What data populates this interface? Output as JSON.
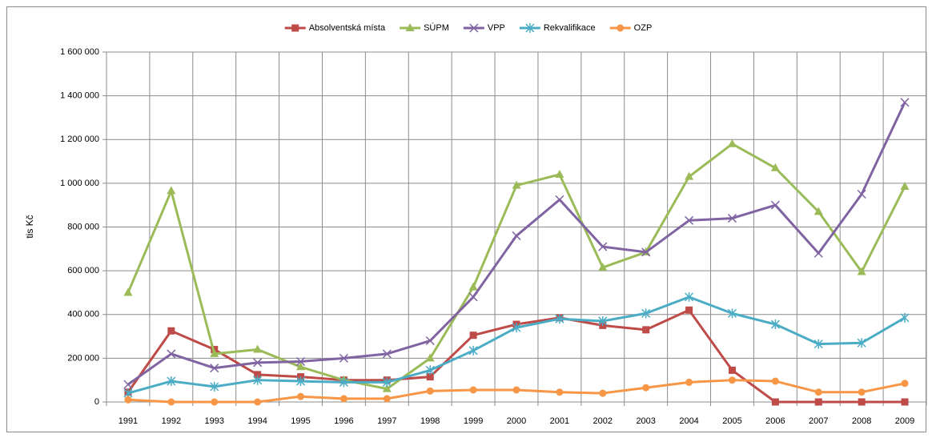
{
  "chart_data": {
    "type": "line",
    "y_label": "tis Kč",
    "categories": [
      "1991",
      "1992",
      "1993",
      "1994",
      "1995",
      "1996",
      "1997",
      "1998",
      "1999",
      "2000",
      "2001",
      "2002",
      "2003",
      "2004",
      "2005",
      "2006",
      "2007",
      "2008",
      "2009"
    ],
    "ylim": [
      0,
      1600000
    ],
    "yticks": [
      0,
      {
        "value": 200000,
        "label": "200 000"
      },
      {
        "value": 400000,
        "label": "400 000"
      },
      {
        "value": 600000,
        "label": "600 000"
      },
      {
        "value": 800000,
        "label": "800 000"
      },
      {
        "value": 1000000,
        "label": "1 000 000"
      },
      {
        "value": 1200000,
        "label": "1 200 000"
      },
      {
        "value": 1400000,
        "label": "1 400 000"
      },
      {
        "value": 1600000,
        "label": "1 600 000"
      }
    ],
    "grid": true,
    "legend": "top",
    "series": [
      {
        "name": "Absolventská místa",
        "color": "#be4b48",
        "marker": "square",
        "values": [
          45000,
          325000,
          240000,
          125000,
          115000,
          100000,
          100000,
          115000,
          305000,
          355000,
          385000,
          350000,
          330000,
          420000,
          145000,
          0,
          0,
          0,
          0
        ]
      },
      {
        "name": "SÚPM",
        "color": "#9bbb59",
        "marker": "triangle",
        "values": [
          500000,
          965000,
          220000,
          240000,
          160000,
          100000,
          60000,
          200000,
          525000,
          990000,
          1040000,
          615000,
          685000,
          1030000,
          1180000,
          1070000,
          870000,
          595000,
          985000
        ]
      },
      {
        "name": "VPP",
        "color": "#8064a2",
        "marker": "x",
        "values": [
          80000,
          220000,
          155000,
          180000,
          185000,
          200000,
          220000,
          280000,
          480000,
          760000,
          925000,
          710000,
          685000,
          830000,
          840000,
          900000,
          680000,
          950000,
          1370000
        ]
      },
      {
        "name": "Rekvalifikace",
        "color": "#4bacc6",
        "marker": "star",
        "values": [
          40000,
          95000,
          70000,
          100000,
          95000,
          90000,
          90000,
          145000,
          235000,
          340000,
          380000,
          370000,
          405000,
          480000,
          405000,
          355000,
          265000,
          270000,
          385000
        ]
      },
      {
        "name": "OZP",
        "color": "#f79646",
        "marker": "circle",
        "values": [
          10000,
          0,
          0,
          0,
          25000,
          15000,
          15000,
          50000,
          55000,
          55000,
          45000,
          40000,
          65000,
          90000,
          100000,
          95000,
          45000,
          45000,
          85000
        ]
      }
    ]
  }
}
